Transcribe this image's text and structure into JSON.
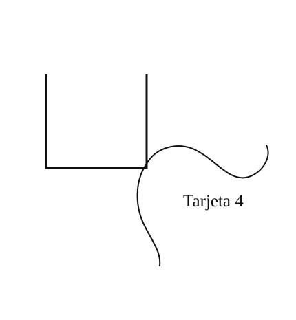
{
  "card": {
    "label": "Tarjeta 4"
  },
  "colors": {
    "background": "#ffffff",
    "stroke": "#111111"
  }
}
